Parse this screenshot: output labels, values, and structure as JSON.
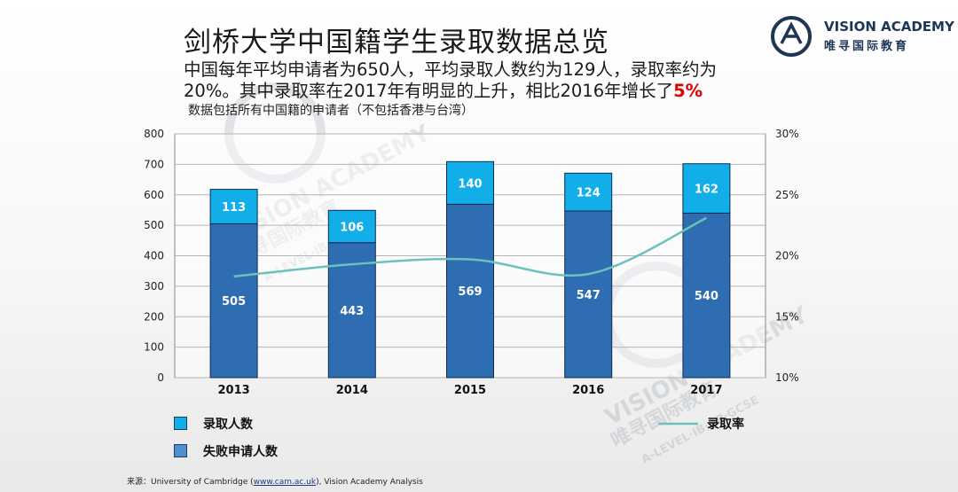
{
  "header": {
    "title": "剑桥大学中国籍学生录取数据总览",
    "subtitle_line1": "中国每年平均申请者为650人，平均录取人数约为129人，录取率约为",
    "subtitle_line2_prefix": "20%。其中录取率在2017年有明显的上升，相比2016年增长了",
    "subtitle_highlight": "5%",
    "note": "数据包括所有中国籍的申请者（不包括香港与台湾）"
  },
  "logo": {
    "name": "VISION ACADEMY",
    "chinese": "唯寻国际教育"
  },
  "watermark": {
    "name": "VISION ACADEMY",
    "chinese": "唯寻国际教育",
    "tagline": "A-LEVEL·IB·AP·GCSE"
  },
  "legend": {
    "admitted": "录取人数",
    "rejected": "失败申请人数",
    "rate": "录取率"
  },
  "source": {
    "prefix": "来源：",
    "text1": "University of Cambridge (",
    "link": "www.cam.ac.uk",
    "text2": "), Vision Academy Analysis"
  },
  "colors": {
    "admitted": "#12aeea",
    "rejected": "#2e6db1",
    "rate_line": "#6cc1bd",
    "bar_border": "#0f2d52",
    "highlight": "#e00000"
  },
  "chart_data": {
    "type": "bar",
    "stacked": true,
    "categories": [
      "2013",
      "2014",
      "2015",
      "2016",
      "2017"
    ],
    "series": [
      {
        "name": "失败申请人数",
        "values": [
          505,
          443,
          569,
          547,
          540
        ]
      },
      {
        "name": "录取人数",
        "values": [
          113,
          106,
          140,
          124,
          162
        ]
      }
    ],
    "line_series": {
      "name": "录取率",
      "axis": "right",
      "values": [
        18.3,
        19.3,
        19.7,
        18.5,
        23.1
      ]
    },
    "y_left": {
      "min": 0,
      "max": 800,
      "ticks": [
        "0",
        "100",
        "200",
        "300",
        "400",
        "500",
        "600",
        "700",
        "800"
      ]
    },
    "y_right": {
      "min": 10,
      "max": 30,
      "ticks": [
        "10%",
        "15%",
        "20%",
        "25%",
        "30%"
      ]
    },
    "grid": true,
    "legend_position": "bottom"
  }
}
